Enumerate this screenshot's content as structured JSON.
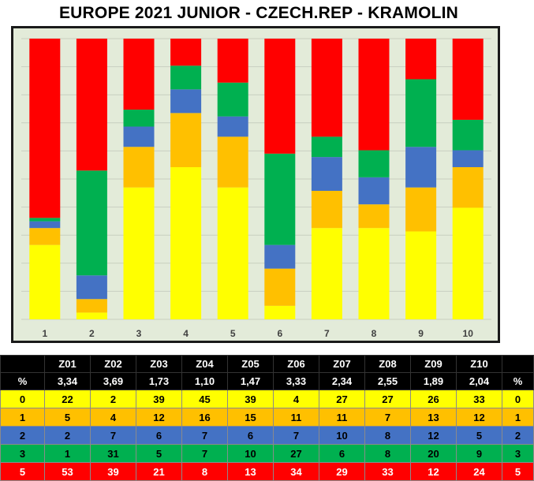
{
  "title": "EUROPE 2021 JUNIOR - CZECH.REP  - KRAMOLIN",
  "colors": {
    "cat0": "#ffff00",
    "cat1": "#ffc000",
    "cat2": "#4472c4",
    "cat3": "#00b050",
    "cat5": "#ff0000",
    "plot_bg": "#e3ebd9"
  },
  "chart_data": {
    "type": "bar",
    "stacked": true,
    "percent": true,
    "categories": [
      "1",
      "2",
      "3",
      "4",
      "5",
      "6",
      "7",
      "8",
      "9",
      "10"
    ],
    "series": [
      {
        "key": "0",
        "values": [
          22,
          2,
          39,
          45,
          39,
          4,
          27,
          27,
          26,
          33
        ]
      },
      {
        "key": "1",
        "values": [
          5,
          4,
          12,
          16,
          15,
          11,
          11,
          7,
          13,
          12
        ]
      },
      {
        "key": "2",
        "values": [
          2,
          7,
          6,
          7,
          6,
          7,
          10,
          8,
          12,
          5
        ]
      },
      {
        "key": "3",
        "values": [
          1,
          31,
          5,
          7,
          10,
          27,
          6,
          8,
          20,
          9
        ]
      },
      {
        "key": "5",
        "values": [
          53,
          39,
          21,
          8,
          13,
          34,
          29,
          33,
          12,
          24
        ]
      }
    ],
    "ylim": [
      0,
      100
    ],
    "grid": true
  },
  "table": {
    "header": [
      "",
      "Z01",
      "Z02",
      "Z03",
      "Z04",
      "Z05",
      "Z06",
      "Z07",
      "Z08",
      "Z09",
      "Z10",
      ""
    ],
    "rows": [
      {
        "cls": "hdr",
        "cells": [
          "%",
          "3,34",
          "3,69",
          "1,73",
          "1,10",
          "1,47",
          "3,33",
          "2,34",
          "2,55",
          "1,89",
          "2,04",
          "%"
        ]
      },
      {
        "cls": "r0",
        "cells": [
          "0",
          "22",
          "2",
          "39",
          "45",
          "39",
          "4",
          "27",
          "27",
          "26",
          "33",
          "0"
        ]
      },
      {
        "cls": "r1",
        "cells": [
          "1",
          "5",
          "4",
          "12",
          "16",
          "15",
          "11",
          "11",
          "7",
          "13",
          "12",
          "1"
        ]
      },
      {
        "cls": "r2",
        "cells": [
          "2",
          "2",
          "7",
          "6",
          "7",
          "6",
          "7",
          "10",
          "8",
          "12",
          "5",
          "2"
        ]
      },
      {
        "cls": "r3",
        "cells": [
          "3",
          "1",
          "31",
          "5",
          "7",
          "10",
          "27",
          "6",
          "8",
          "20",
          "9",
          "3"
        ]
      },
      {
        "cls": "r5",
        "cells": [
          "5",
          "53",
          "39",
          "21",
          "8",
          "13",
          "34",
          "29",
          "33",
          "12",
          "24",
          "5"
        ]
      }
    ]
  }
}
